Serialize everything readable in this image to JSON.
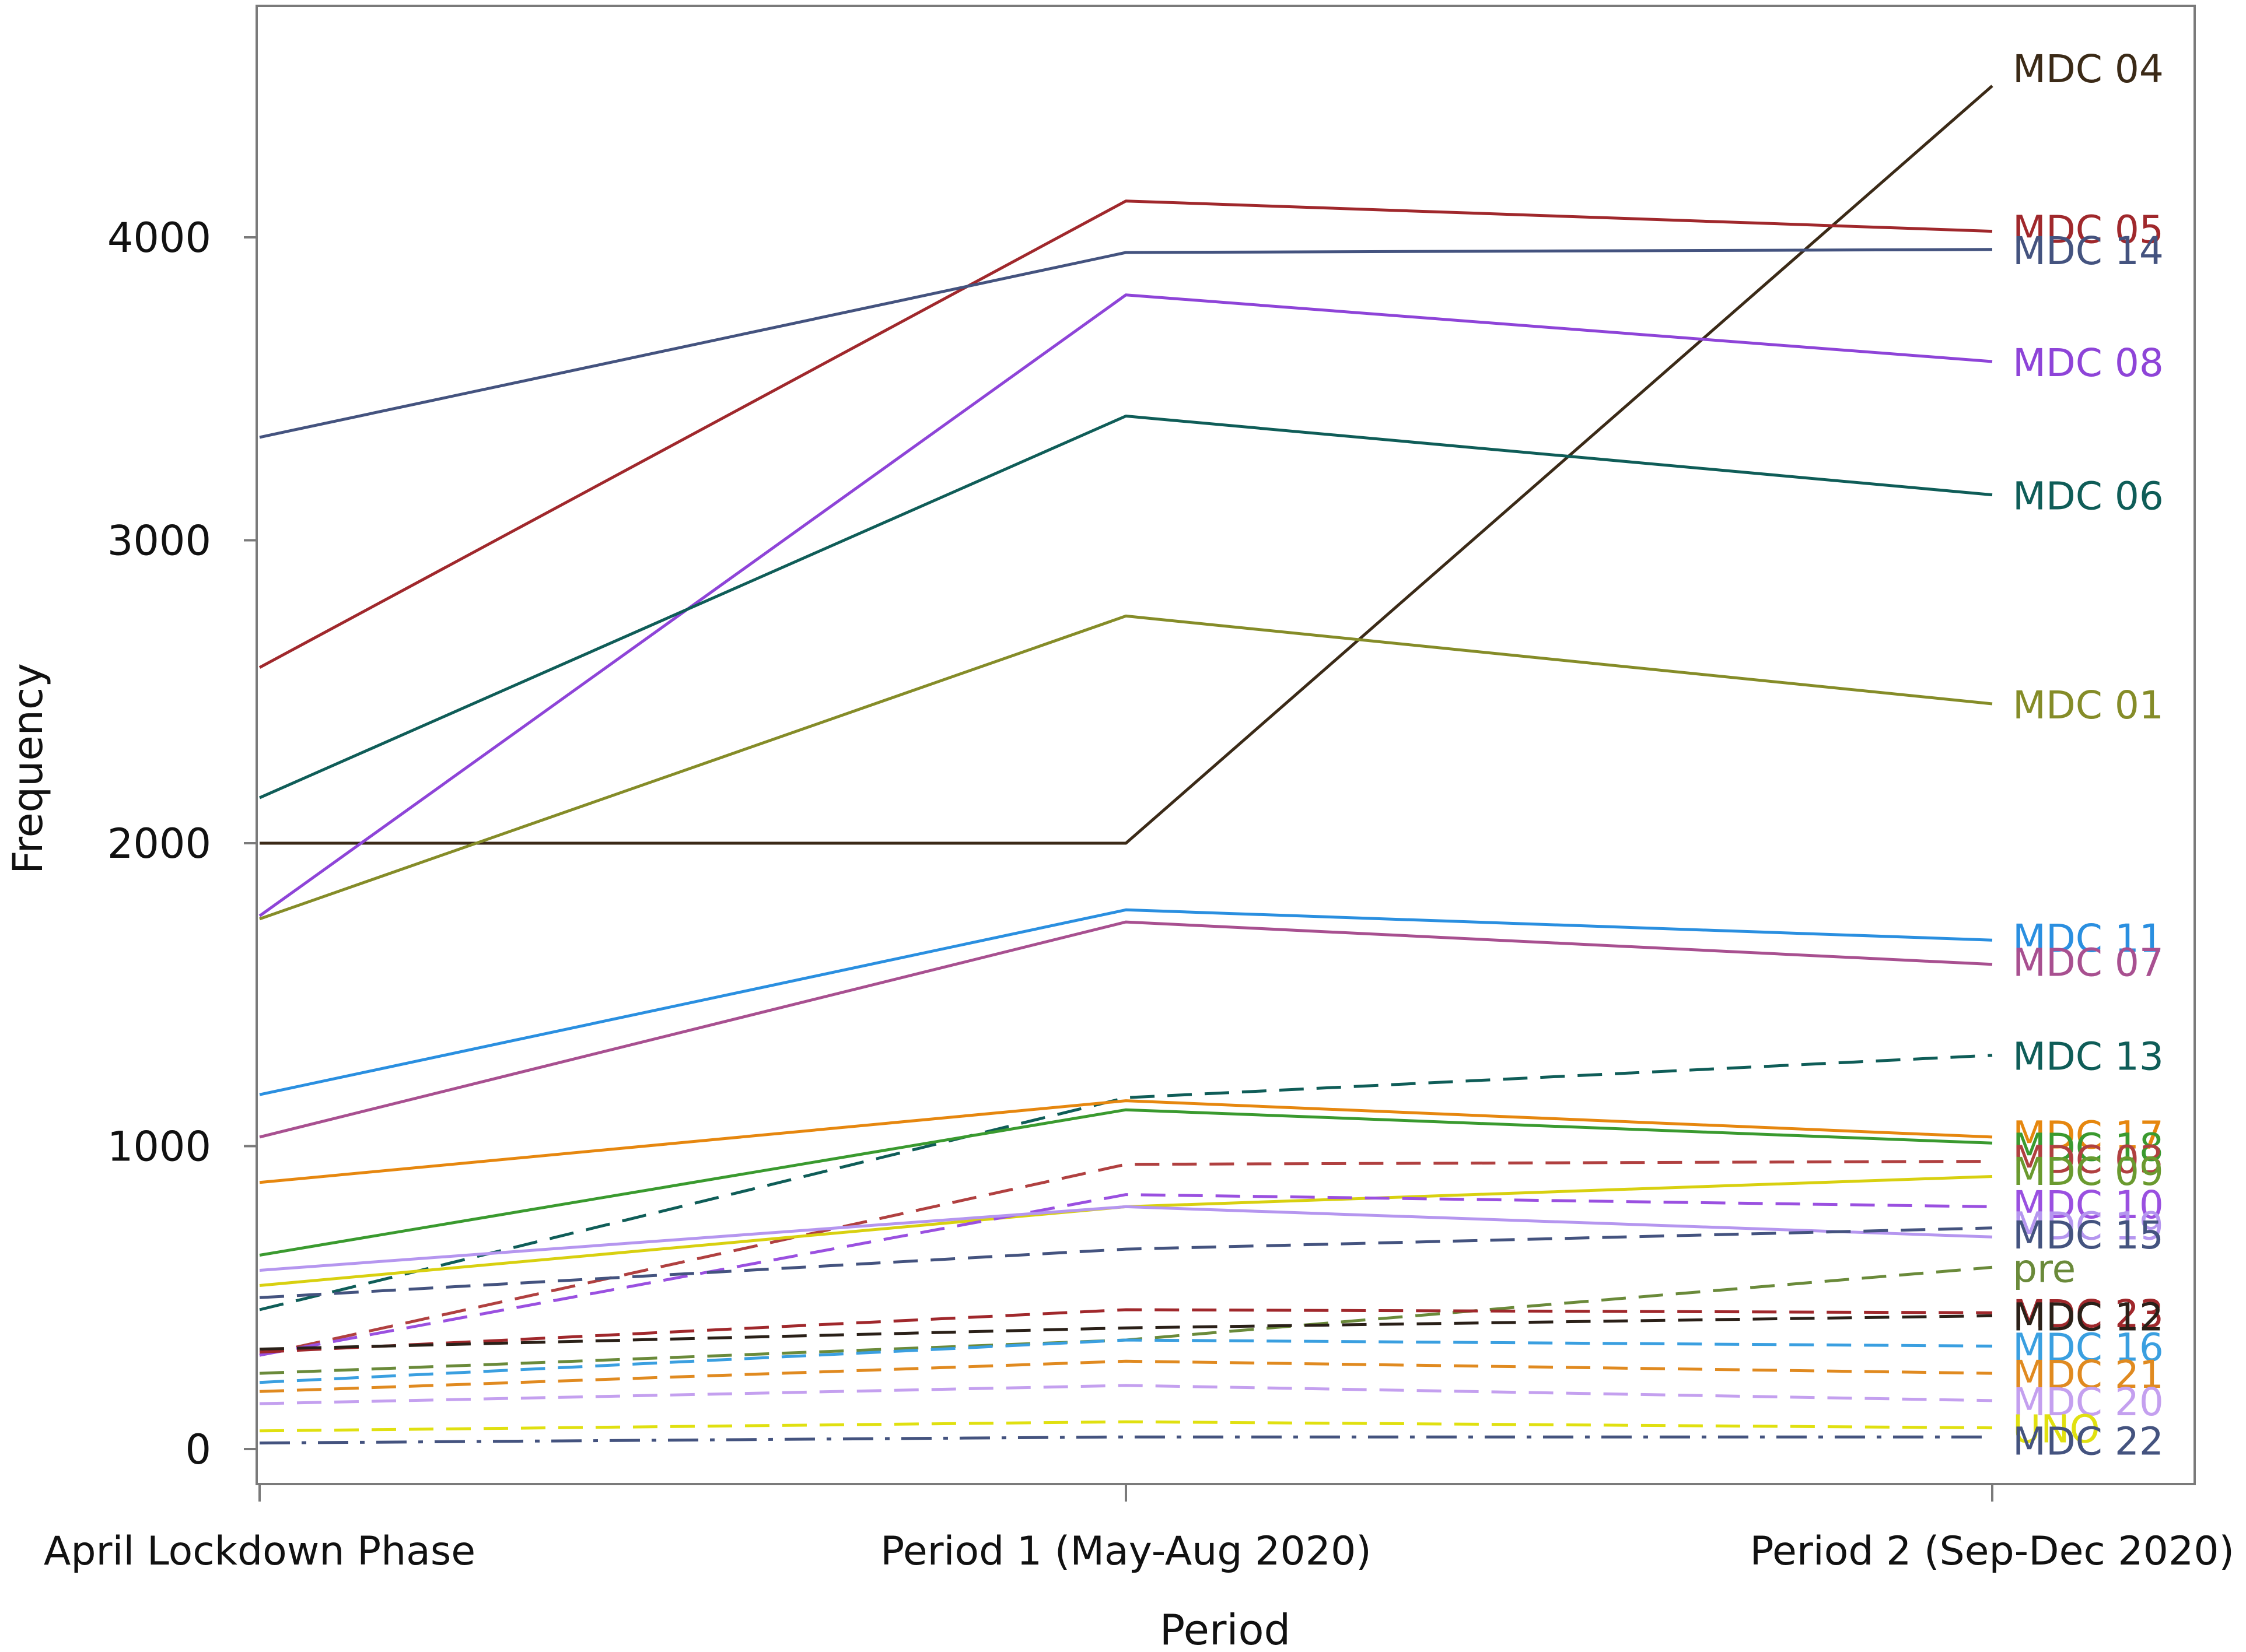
{
  "chart_data": {
    "type": "line",
    "title": "",
    "xlabel": "Period",
    "ylabel": "Frequency",
    "categories": [
      "April Lockdown Phase",
      "Period 1 (May-Aug 2020)",
      "Period 2 (Sep-Dec 2020)"
    ],
    "ylim": [
      -150,
      4800
    ],
    "yticks": [
      0,
      1000,
      2000,
      3000,
      4000
    ],
    "grid": false,
    "legend": "end-of-line labels",
    "series": [
      {
        "name": "MDC 04",
        "values": [
          2000,
          2000,
          4500
        ],
        "color": "#3b2a17",
        "dash": "solid"
      },
      {
        "name": "MDC 05",
        "values": [
          2580,
          4120,
          4020
        ],
        "color": "#a0282c",
        "dash": "solid"
      },
      {
        "name": "MDC 14",
        "values": [
          3340,
          3950,
          3960
        ],
        "color": "#44537f",
        "dash": "solid"
      },
      {
        "name": "MDC 08",
        "values": [
          1760,
          3810,
          3590
        ],
        "color": "#8e44d8",
        "dash": "solid"
      },
      {
        "name": "MDC 06",
        "values": [
          2150,
          3410,
          3150
        ],
        "color": "#0f5d58",
        "dash": "solid"
      },
      {
        "name": "MDC 01",
        "values": [
          1750,
          2750,
          2460
        ],
        "color": "#858c28",
        "dash": "solid"
      },
      {
        "name": "MDC 11",
        "values": [
          1170,
          1780,
          1680
        ],
        "color": "#2a8fe0",
        "dash": "solid"
      },
      {
        "name": "MDC 07",
        "values": [
          1030,
          1740,
          1600
        ],
        "color": "#a85090",
        "dash": "solid"
      },
      {
        "name": "MDC 13",
        "values": [
          460,
          1160,
          1300
        ],
        "color": "#0f5d58",
        "dash": "dashed"
      },
      {
        "name": "MDC 17",
        "values": [
          880,
          1150,
          1030
        ],
        "color": "#e6870f",
        "dash": "solid"
      },
      {
        "name": "MDC 18",
        "values": [
          640,
          1120,
          1010
        ],
        "color": "#3a9a2f",
        "dash": "solid"
      },
      {
        "name": "MDC 03",
        "values": [
          310,
          940,
          950
        ],
        "color": "#b04040",
        "dash": "dashed"
      },
      {
        "name": "MDC 09",
        "values": [
          540,
          800,
          900
        ],
        "color": "#d8d010",
        "dash": "solid"
      },
      {
        "name": "MDC 10",
        "values": [
          310,
          840,
          800
        ],
        "color": "#9a50e0",
        "dash": "dashed"
      },
      {
        "name": "MDC 19",
        "values": [
          590,
          800,
          700
        ],
        "color": "#b596ef",
        "dash": "solid"
      },
      {
        "name": "MDC 15",
        "values": [
          500,
          660,
          730
        ],
        "color": "#44537f",
        "dash": "dashed"
      },
      {
        "name": "pre",
        "values": [
          250,
          360,
          600
        ],
        "color": "#6a8a3a",
        "dash": "dashed"
      },
      {
        "name": "MDC 23",
        "values": [
          320,
          460,
          450
        ],
        "color": "#a0282c",
        "dash": "dashed"
      },
      {
        "name": "MDC 12",
        "values": [
          330,
          400,
          440
        ],
        "color": "#2a2018",
        "dash": "dashed"
      },
      {
        "name": "MDC 16",
        "values": [
          220,
          360,
          340
        ],
        "color": "#3a9fe0",
        "dash": "dashed"
      },
      {
        "name": "MDC 21",
        "values": [
          190,
          290,
          250
        ],
        "color": "#e08a20",
        "dash": "dashed"
      },
      {
        "name": "MDC 20",
        "values": [
          150,
          210,
          160
        ],
        "color": "#c4a0ef",
        "dash": "dashed"
      },
      {
        "name": "MDC 22",
        "values": [
          20,
          40,
          40
        ],
        "color": "#44537f",
        "dash": "dashdot"
      },
      {
        "name": "UNO",
        "values": [
          60,
          90,
          70
        ],
        "color": "#e0e010",
        "dash": "dashed"
      }
    ]
  },
  "end_labels": [
    {
      "text": "MDC 04",
      "color": "#3b2a17",
      "value": 4560
    },
    {
      "text": "MDC 05",
      "color": "#a0282c",
      "value": 4030
    },
    {
      "text": "MDC 14",
      "color": "#44537f",
      "value": 3960
    },
    {
      "text": "MDC 08",
      "color": "#8e44d8",
      "value": 3590
    },
    {
      "text": "MDC 06",
      "color": "#0f5d58",
      "value": 3150
    },
    {
      "text": "MDC 01",
      "color": "#858c28",
      "value": 2460
    },
    {
      "text": "MDC 11",
      "color": "#2a8fe0",
      "value": 1690
    },
    {
      "text": "MDC 07",
      "color": "#a85090",
      "value": 1610
    },
    {
      "text": "MDC 13",
      "color": "#0f5d58",
      "value": 1300
    },
    {
      "text": "MDC 17",
      "color": "#e6870f",
      "value": 1040
    },
    {
      "text": "MDC 18",
      "color": "#3a9a2f",
      "value": 1000
    },
    {
      "text": "MDC 03",
      "color": "#b04040",
      "value": 960
    },
    {
      "text": "MDC 09",
      "color": "#6a9a2f",
      "value": 920
    },
    {
      "text": "MDC 10",
      "color": "#9a50e0",
      "value": 810
    },
    {
      "text": "MDC 19",
      "color": "#b596ef",
      "value": 740
    },
    {
      "text": "MDC 15",
      "color": "#44537f",
      "value": 710
    },
    {
      "text": "pre",
      "color": "#6a8a3a",
      "value": 600
    },
    {
      "text": "MDC 23",
      "color": "#a0282c",
      "value": 450
    },
    {
      "text": "MDC 12",
      "color": "#2a2018",
      "value": 440
    },
    {
      "text": "MDC 16",
      "color": "#3a9fe0",
      "value": 340
    },
    {
      "text": "MDC 21",
      "color": "#e08a20",
      "value": 250
    },
    {
      "text": "MDC 20",
      "color": "#c4a0ef",
      "value": 160
    },
    {
      "text": "UNO",
      "color": "#e0e010",
      "value": 70
    },
    {
      "text": "MDC 22",
      "color": "#44537f",
      "value": 30
    }
  ]
}
